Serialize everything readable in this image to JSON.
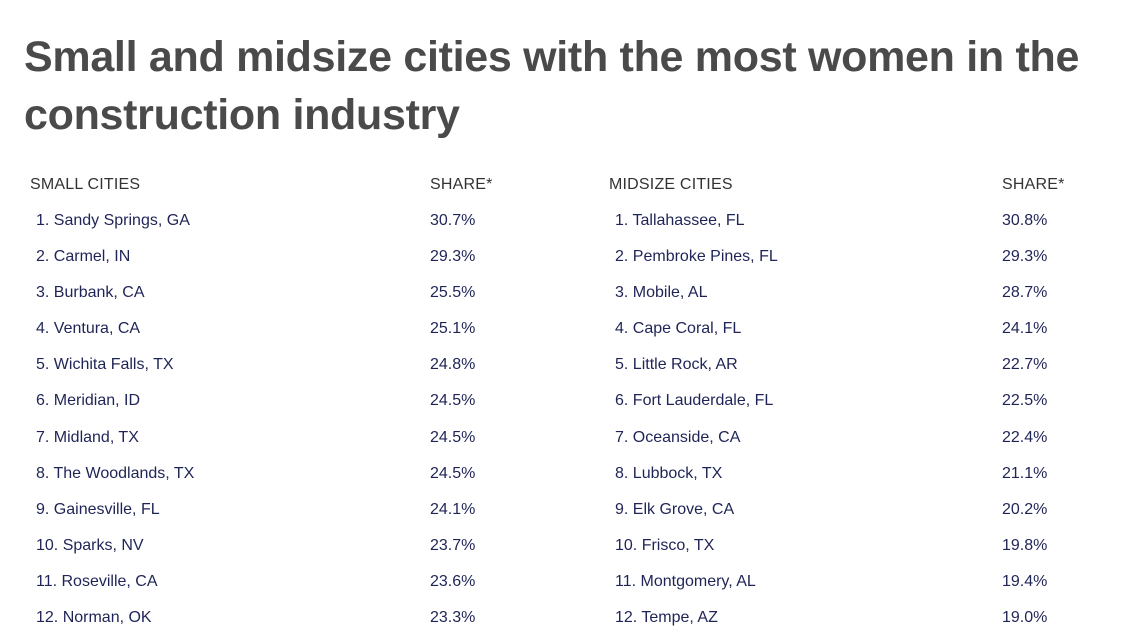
{
  "title": "Small and midsize cities with the most women in the construction industry",
  "chart_data": {
    "type": "table",
    "title": "Small and midsize cities with the most women in the construction industry",
    "tables": [
      {
        "header": {
          "name": "SMALL CITIES",
          "share": "SHARE*"
        },
        "rows": [
          {
            "city": "1. Sandy Springs, GA",
            "share": "30.7%"
          },
          {
            "city": "2. Carmel, IN",
            "share": "29.3%"
          },
          {
            "city": "3. Burbank, CA",
            "share": "25.5%"
          },
          {
            "city": "4. Ventura, CA",
            "share": "25.1%"
          },
          {
            "city": "5. Wichita Falls, TX",
            "share": "24.8%"
          },
          {
            "city": "6. Meridian, ID",
            "share": "24.5%"
          },
          {
            "city": "7. Midland, TX",
            "share": "24.5%"
          },
          {
            "city": "8. The Woodlands, TX",
            "share": "24.5%"
          },
          {
            "city": "9. Gainesville, FL",
            "share": "24.1%"
          },
          {
            "city": "10. Sparks, NV",
            "share": "23.7%"
          },
          {
            "city": "11. Roseville, CA",
            "share": "23.6%"
          },
          {
            "city": "12. Norman, OK",
            "share": "23.3%"
          }
        ]
      },
      {
        "header": {
          "name": "MIDSIZE CITIES",
          "share": "SHARE*"
        },
        "rows": [
          {
            "city": "1. Tallahassee, FL",
            "share": "30.8%"
          },
          {
            "city": "2. Pembroke Pines, FL",
            "share": "29.3%"
          },
          {
            "city": "3. Mobile, AL",
            "share": "28.7%"
          },
          {
            "city": "4. Cape Coral, FL",
            "share": "24.1%"
          },
          {
            "city": "5. Little Rock, AR",
            "share": "22.7%"
          },
          {
            "city": "6. Fort Lauderdale, FL",
            "share": "22.5%"
          },
          {
            "city": "7. Oceanside, CA",
            "share": "22.4%"
          },
          {
            "city": "8. Lubbock, TX",
            "share": "21.1%"
          },
          {
            "city": "9. Elk Grove, CA",
            "share": "20.2%"
          },
          {
            "city": "10. Frisco, TX",
            "share": "19.8%"
          },
          {
            "city": "11. Montgomery, AL",
            "share": "19.4%"
          },
          {
            "city": "12. Tempe, AZ",
            "share": "19.0%"
          }
        ]
      }
    ]
  },
  "colors": {
    "title": "#4a4a4a",
    "header": "#333333",
    "row_text": "#1f2456",
    "background": "#ffffff"
  }
}
